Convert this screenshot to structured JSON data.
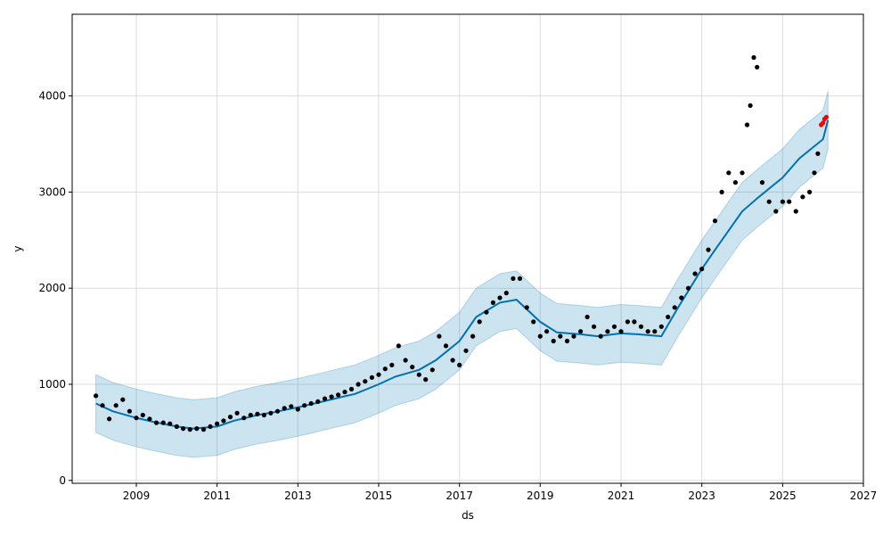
{
  "chart_data": {
    "type": "line",
    "title": "",
    "xlabel": "ds",
    "ylabel": "y",
    "x_ticks": [
      "2009",
      "2011",
      "2013",
      "2015",
      "2017",
      "2019",
      "2021",
      "2023",
      "2025",
      "2027"
    ],
    "y_ticks": [
      0,
      1000,
      2000,
      3000,
      4000
    ],
    "xlim": [
      "2007-06-01",
      "2027-01-01"
    ],
    "ylim": [
      -30,
      4850
    ],
    "grid": true,
    "colors": {
      "observed": "#000000",
      "forecast_line": "#0072B2",
      "uncertainty_band": "#0072B2",
      "future_points": "#ff0000",
      "grid": "#dddddd"
    },
    "series": [
      {
        "kind": "forecast",
        "x": [
          "2008-01-01",
          "2008-06-01",
          "2009-01-01",
          "2009-06-01",
          "2010-01-01",
          "2010-06-01",
          "2011-01-01",
          "2011-06-01",
          "2012-01-01",
          "2012-06-01",
          "2013-01-01",
          "2013-06-01",
          "2014-01-01",
          "2014-06-01",
          "2015-01-01",
          "2015-06-01",
          "2016-01-01",
          "2016-06-01",
          "2017-01-01",
          "2017-06-01",
          "2018-01-01",
          "2018-06-01",
          "2019-01-01",
          "2019-06-01",
          "2020-01-01",
          "2020-06-01",
          "2021-01-01",
          "2021-06-01",
          "2022-01-01",
          "2022-06-01",
          "2023-01-01",
          "2023-06-01",
          "2024-01-01",
          "2024-06-01",
          "2025-01-01",
          "2025-06-01",
          "2026-01-01",
          "2026-02-15"
        ],
        "yhat": [
          800,
          720,
          650,
          610,
          560,
          540,
          560,
          620,
          680,
          710,
          760,
          800,
          860,
          900,
          1000,
          1080,
          1150,
          1250,
          1450,
          1700,
          1850,
          1880,
          1650,
          1540,
          1520,
          1500,
          1530,
          1520,
          1500,
          1800,
          2200,
          2450,
          2800,
          2950,
          3150,
          3350,
          3550,
          3750
        ],
        "yhat_lower": [
          500,
          420,
          350,
          310,
          260,
          240,
          260,
          320,
          380,
          410,
          460,
          500,
          560,
          600,
          700,
          780,
          850,
          950,
          1150,
          1400,
          1550,
          1580,
          1350,
          1240,
          1220,
          1200,
          1230,
          1220,
          1200,
          1500,
          1900,
          2150,
          2500,
          2650,
          2850,
          3050,
          3250,
          3450
        ],
        "yhat_upper": [
          1100,
          1020,
          950,
          910,
          860,
          840,
          860,
          920,
          980,
          1010,
          1060,
          1100,
          1160,
          1200,
          1300,
          1380,
          1450,
          1550,
          1750,
          2000,
          2150,
          2180,
          1950,
          1840,
          1820,
          1800,
          1830,
          1820,
          1800,
          2100,
          2500,
          2750,
          3100,
          3250,
          3450,
          3650,
          3850,
          4050
        ]
      },
      {
        "kind": "observed",
        "x": [
          "2008-01-01",
          "2008-03-01",
          "2008-05-01",
          "2008-07-01",
          "2008-09-01",
          "2008-11-01",
          "2009-01-01",
          "2009-03-01",
          "2009-05-01",
          "2009-07-01",
          "2009-09-01",
          "2009-11-01",
          "2010-01-01",
          "2010-03-01",
          "2010-05-01",
          "2010-07-01",
          "2010-09-01",
          "2010-11-01",
          "2011-01-01",
          "2011-03-01",
          "2011-05-01",
          "2011-07-01",
          "2011-09-01",
          "2011-11-01",
          "2012-01-01",
          "2012-03-01",
          "2012-05-01",
          "2012-07-01",
          "2012-09-01",
          "2012-11-01",
          "2013-01-01",
          "2013-03-01",
          "2013-05-01",
          "2013-07-01",
          "2013-09-01",
          "2013-11-01",
          "2014-01-01",
          "2014-03-01",
          "2014-05-01",
          "2014-07-01",
          "2014-09-01",
          "2014-11-01",
          "2015-01-01",
          "2015-03-01",
          "2015-05-01",
          "2015-07-01",
          "2015-09-01",
          "2015-11-01",
          "2016-01-01",
          "2016-03-01",
          "2016-05-01",
          "2016-07-01",
          "2016-09-01",
          "2016-11-01",
          "2017-01-01",
          "2017-03-01",
          "2017-05-01",
          "2017-07-01",
          "2017-09-01",
          "2017-11-01",
          "2018-01-01",
          "2018-03-01",
          "2018-05-01",
          "2018-07-01",
          "2018-09-01",
          "2018-11-01",
          "2019-01-01",
          "2019-03-01",
          "2019-05-01",
          "2019-07-01",
          "2019-09-01",
          "2019-11-01",
          "2020-01-01",
          "2020-03-01",
          "2020-05-01",
          "2020-07-01",
          "2020-09-01",
          "2020-11-01",
          "2021-01-01",
          "2021-03-01",
          "2021-05-01",
          "2021-07-01",
          "2021-09-01",
          "2021-11-01",
          "2022-01-01",
          "2022-03-01",
          "2022-05-01",
          "2022-07-01",
          "2022-09-01",
          "2022-11-01",
          "2023-01-01",
          "2023-03-01",
          "2023-05-01",
          "2023-07-01",
          "2023-09-01",
          "2023-11-01",
          "2024-01-01",
          "2024-02-15",
          "2024-03-15",
          "2024-04-15",
          "2024-05-15",
          "2024-07-01",
          "2024-09-01",
          "2024-11-01",
          "2025-01-01",
          "2025-03-01",
          "2025-05-01",
          "2025-07-01",
          "2025-09-01",
          "2025-10-15",
          "2025-11-15"
        ],
        "y": [
          880,
          780,
          640,
          780,
          840,
          720,
          650,
          680,
          640,
          600,
          600,
          590,
          560,
          540,
          530,
          540,
          530,
          560,
          590,
          620,
          660,
          700,
          650,
          680,
          690,
          680,
          700,
          720,
          750,
          770,
          740,
          780,
          800,
          820,
          850,
          870,
          890,
          920,
          950,
          1000,
          1030,
          1070,
          1100,
          1160,
          1200,
          1400,
          1250,
          1180,
          1100,
          1050,
          1150,
          1500,
          1400,
          1250,
          1200,
          1350,
          1500,
          1650,
          1750,
          1850,
          1900,
          1950,
          2100,
          2100,
          1800,
          1650,
          1500,
          1550,
          1450,
          1500,
          1450,
          1500,
          1550,
          1700,
          1600,
          1500,
          1550,
          1600,
          1550,
          1650,
          1650,
          1600,
          1550,
          1550,
          1600,
          1700,
          1800,
          1900,
          2000,
          2150,
          2200,
          2400,
          2700,
          3000,
          3200,
          3100,
          3200,
          3700,
          3900,
          4400,
          4300,
          3100,
          2900,
          2800,
          2900,
          2900,
          2800,
          2950,
          3000,
          3200,
          3400
        ],
        "marker": "dot"
      },
      {
        "kind": "future",
        "x": [
          "2025-12-15",
          "2026-01-01",
          "2026-01-15",
          "2026-02-01"
        ],
        "y": [
          3700,
          3720,
          3760,
          3780
        ],
        "marker": "dot"
      }
    ]
  }
}
